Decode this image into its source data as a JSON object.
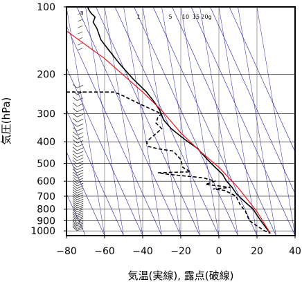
{
  "chart_data": {
    "type": "line",
    "title": "",
    "xlabel": "気温(実線), 露点(破線)",
    "ylabel": "気圧(hPa)",
    "xlim": [
      -80,
      40
    ],
    "ylim": [
      1050,
      100
    ],
    "y_scale": "log",
    "x_ticks": [
      "−80",
      "−60",
      "−40",
      "−20",
      "0",
      "20",
      "40"
    ],
    "y_ticks": [
      "100",
      "200",
      "300",
      "400",
      "500",
      "600",
      "700",
      "800",
      "900",
      "1000"
    ],
    "mixing_ratio_labels": [
      "1",
      "5",
      "10",
      "15",
      "20g"
    ],
    "grid": true,
    "colors": {
      "temperature": "#000000",
      "dewpoint": "#000000",
      "reference": "#e8141c",
      "isotherms": "#1e1eaa",
      "pressure_lines": "#000000",
      "wind_barbs": "#333333"
    },
    "series": [
      {
        "key": "temperature",
        "style": "solid",
        "points": [
          [
            -69,
            100
          ],
          [
            -68,
            104
          ],
          [
            -67,
            107
          ],
          [
            -65,
            111
          ],
          [
            -66,
            117
          ],
          [
            -64,
            125
          ],
          [
            -62,
            140
          ],
          [
            -58,
            155
          ],
          [
            -52,
            180
          ],
          [
            -45,
            210
          ],
          [
            -38,
            240
          ],
          [
            -34,
            265
          ],
          [
            -31,
            290
          ],
          [
            -29,
            320
          ],
          [
            -25,
            350
          ],
          [
            -18,
            390
          ],
          [
            -11,
            430
          ],
          [
            -10,
            440
          ],
          [
            -6,
            480
          ],
          [
            -3,
            510
          ],
          [
            2,
            560
          ],
          [
            4,
            600
          ],
          [
            7,
            640
          ],
          [
            9,
            680
          ],
          [
            12,
            720
          ],
          [
            15,
            760
          ],
          [
            18,
            800
          ],
          [
            20,
            850
          ],
          [
            22,
            900
          ],
          [
            24,
            950
          ],
          [
            26,
            1000
          ],
          [
            27,
            1025
          ]
        ]
      },
      {
        "key": "dewpoint",
        "style": "dashed",
        "points": [
          [
            -80,
            240
          ],
          [
            -55,
            240
          ],
          [
            -50,
            250
          ],
          [
            -42,
            270
          ],
          [
            -34,
            290
          ],
          [
            -30,
            300
          ],
          [
            -32,
            310
          ],
          [
            -33,
            330
          ],
          [
            -30,
            350
          ],
          [
            -35,
            380
          ],
          [
            -38,
            400
          ],
          [
            -37,
            420
          ],
          [
            -32,
            430
          ],
          [
            -24,
            440
          ],
          [
            -20,
            480
          ],
          [
            -19,
            520
          ],
          [
            -15,
            545
          ],
          [
            -32,
            550
          ],
          [
            -26,
            560
          ],
          [
            -12,
            575
          ],
          [
            -8,
            580
          ],
          [
            -2,
            600
          ],
          [
            -7,
            620
          ],
          [
            0,
            630
          ],
          [
            6,
            640
          ],
          [
            -3,
            650
          ],
          [
            3,
            660
          ],
          [
            9,
            700
          ],
          [
            11,
            760
          ],
          [
            14,
            820
          ],
          [
            16,
            900
          ],
          [
            20,
            950
          ],
          [
            24,
            1000
          ],
          [
            27,
            1025
          ]
        ]
      },
      {
        "key": "reference",
        "style": "solid",
        "points": [
          [
            -80,
            128
          ],
          [
            -60,
            170
          ],
          [
            -40,
            240
          ],
          [
            -30,
            290
          ],
          [
            -20,
            365
          ],
          [
            -10,
            440
          ],
          [
            0,
            520
          ],
          [
            10,
            640
          ],
          [
            20,
            820
          ],
          [
            27,
            1025
          ]
        ]
      }
    ]
  }
}
